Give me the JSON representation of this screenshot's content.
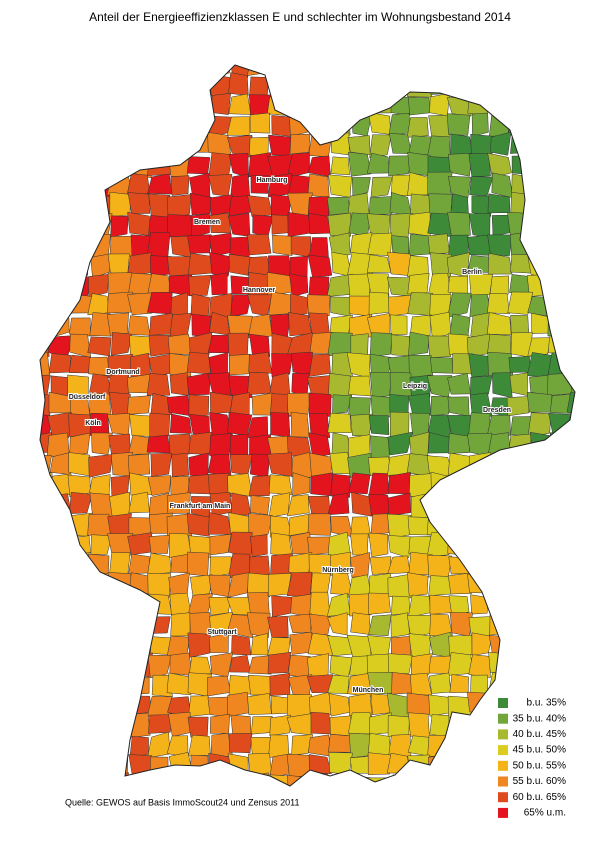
{
  "title": "Anteil der Energieeffizienzklassen E und schlechter im Wohnungsbestand 2014",
  "cities": [
    "Hamburg",
    "Bremen",
    "Berlin",
    "Hannover",
    "Dortmund",
    "Düsseldorf",
    "Köln",
    "Leipzig",
    "Dresden",
    "Frankfurt am Main",
    "Nürnberg",
    "Stuttgart",
    "München"
  ],
  "legend": {
    "items": [
      {
        "label": "b.u. 35%",
        "color": "#3d8a38"
      },
      {
        "label": "35 b.u. 40%",
        "color": "#72a53a"
      },
      {
        "label": "40 b.u. 45%",
        "color": "#a9b92f"
      },
      {
        "label": "45 b.u. 50%",
        "color": "#dacd20"
      },
      {
        "label": "50 b.u. 55%",
        "color": "#f4b318"
      },
      {
        "label": "55 b.u. 60%",
        "color": "#ef861f"
      },
      {
        "label": "60 b.u. 65%",
        "color": "#e04b1d"
      },
      {
        "label": "65% u.m.",
        "color": "#e3141d"
      }
    ]
  },
  "source": "Quelle: GEWOS auf Basis ImmoScout24 und Zensus 2011"
}
